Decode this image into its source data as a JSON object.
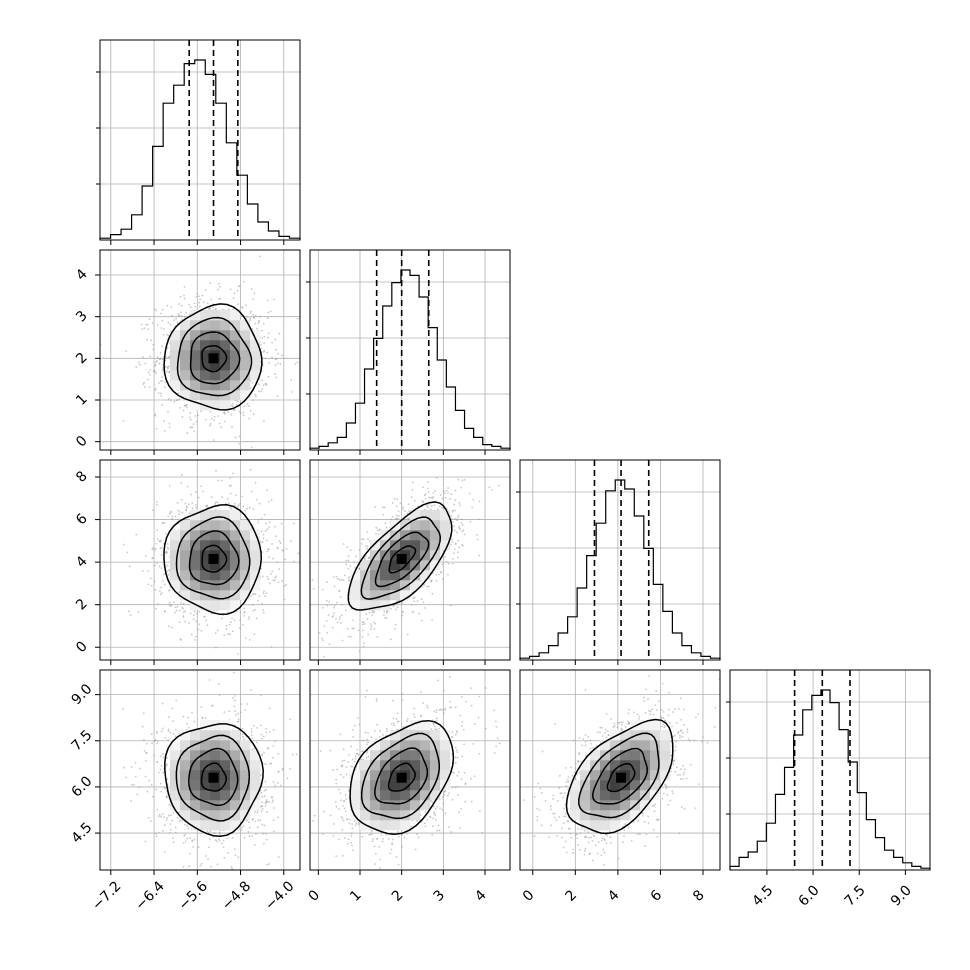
{
  "chart_data": {
    "type": "corner",
    "grid": true,
    "params": [
      {
        "range": [
          -7.4,
          -3.7
        ],
        "ticks": [
          "-7.2",
          "-6.4",
          "-5.6",
          "-4.8",
          "-4.0"
        ],
        "tick_values": [
          -7.2,
          -6.4,
          -5.6,
          -4.8,
          -4.0
        ],
        "quantiles": [
          -5.75,
          -5.3,
          -4.85
        ],
        "center": -5.3,
        "sigma": 0.45
      },
      {
        "range": [
          -0.2,
          4.6
        ],
        "ticks": [
          "0",
          "1",
          "2",
          "3",
          "4"
        ],
        "tick_values": [
          0,
          1,
          2,
          3,
          4
        ],
        "quantiles": [
          1.4,
          2.0,
          2.65
        ],
        "center": 2.0,
        "sigma": 0.62
      },
      {
        "range": [
          -0.6,
          8.8
        ],
        "ticks": [
          "0",
          "2",
          "4",
          "6",
          "8"
        ],
        "tick_values": [
          0,
          2,
          4,
          6,
          8
        ],
        "quantiles": [
          2.9,
          4.15,
          5.45
        ],
        "center": 4.15,
        "sigma": 1.25
      },
      {
        "range": [
          3.3,
          9.8
        ],
        "ticks": [
          "4.5",
          "6.0",
          "7.5",
          "9.0"
        ],
        "tick_values": [
          4.5,
          6.0,
          7.5,
          9.0
        ],
        "quantiles": [
          5.4,
          6.3,
          7.2
        ],
        "center": 6.3,
        "sigma": 0.9
      }
    ],
    "correlations": [
      [
        1,
        0,
        0,
        0
      ],
      [
        0,
        1,
        0.65,
        0.35
      ],
      [
        0,
        0.65,
        1,
        0.5
      ],
      [
        0,
        0.35,
        0.5,
        1
      ]
    ],
    "histograms": [
      [
        1,
        3,
        6,
        14,
        30,
        52,
        76,
        86,
        98,
        100,
        92,
        76,
        54,
        36,
        20,
        10,
        5,
        2,
        1
      ],
      [
        1,
        2,
        4,
        7,
        15,
        26,
        45,
        62,
        80,
        93,
        100,
        97,
        85,
        68,
        50,
        35,
        22,
        12,
        7,
        3,
        2,
        1
      ],
      [
        1,
        2,
        4,
        8,
        15,
        24,
        40,
        58,
        76,
        94,
        100,
        95,
        80,
        62,
        42,
        27,
        15,
        8,
        4,
        2,
        1
      ],
      [
        2,
        7,
        10,
        16,
        26,
        42,
        57,
        75,
        89,
        97,
        100,
        93,
        78,
        60,
        43,
        28,
        18,
        11,
        7,
        4,
        2,
        1
      ]
    ],
    "contour_sigmas": [
      0.5,
      1.0,
      1.5,
      2.0
    ]
  }
}
